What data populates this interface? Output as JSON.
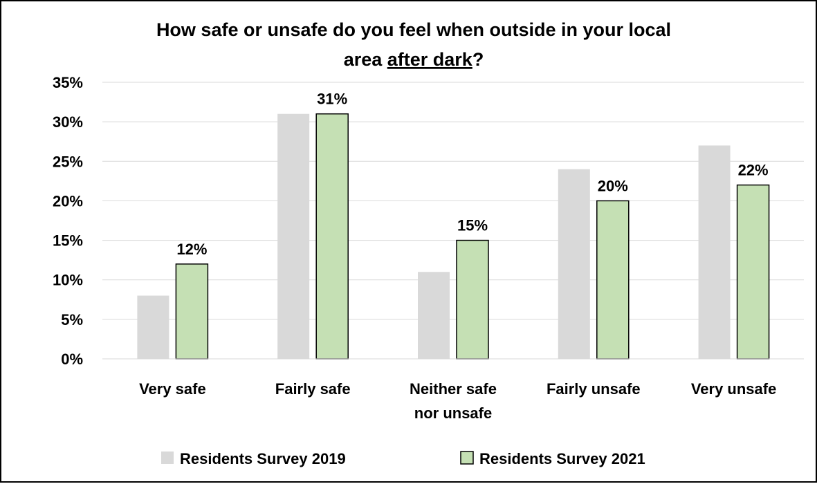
{
  "chart_data": {
    "type": "bar",
    "title_line1": "How safe or unsafe do you feel when outside in your local",
    "title_line2_prefix": "area ",
    "title_line2_underlined": "after dark",
    "title_line2_suffix": "?",
    "categories": [
      [
        "Very safe"
      ],
      [
        "Fairly safe"
      ],
      [
        "Neither safe",
        "nor unsafe"
      ],
      [
        "Fairly unsafe"
      ],
      [
        "Very unsafe"
      ]
    ],
    "series": [
      {
        "name": "Residents Survey 2019",
        "values": [
          8,
          31,
          11,
          24,
          27
        ],
        "color": "#d9d9d9",
        "stroke": "none",
        "show_labels": false
      },
      {
        "name": "Residents Survey 2021",
        "values": [
          12,
          31,
          15,
          20,
          22
        ],
        "color": "#c5e0b4",
        "stroke": "#000000",
        "show_labels": true
      }
    ],
    "data_labels_2021": [
      "12%",
      "31%",
      "15%",
      "20%",
      "22%"
    ],
    "yticks": [
      "0%",
      "5%",
      "10%",
      "15%",
      "20%",
      "25%",
      "30%",
      "35%"
    ],
    "ylim": [
      0,
      35
    ],
    "grid": true,
    "legend_position": "bottom",
    "gridline_color": "#d9d9d9"
  }
}
